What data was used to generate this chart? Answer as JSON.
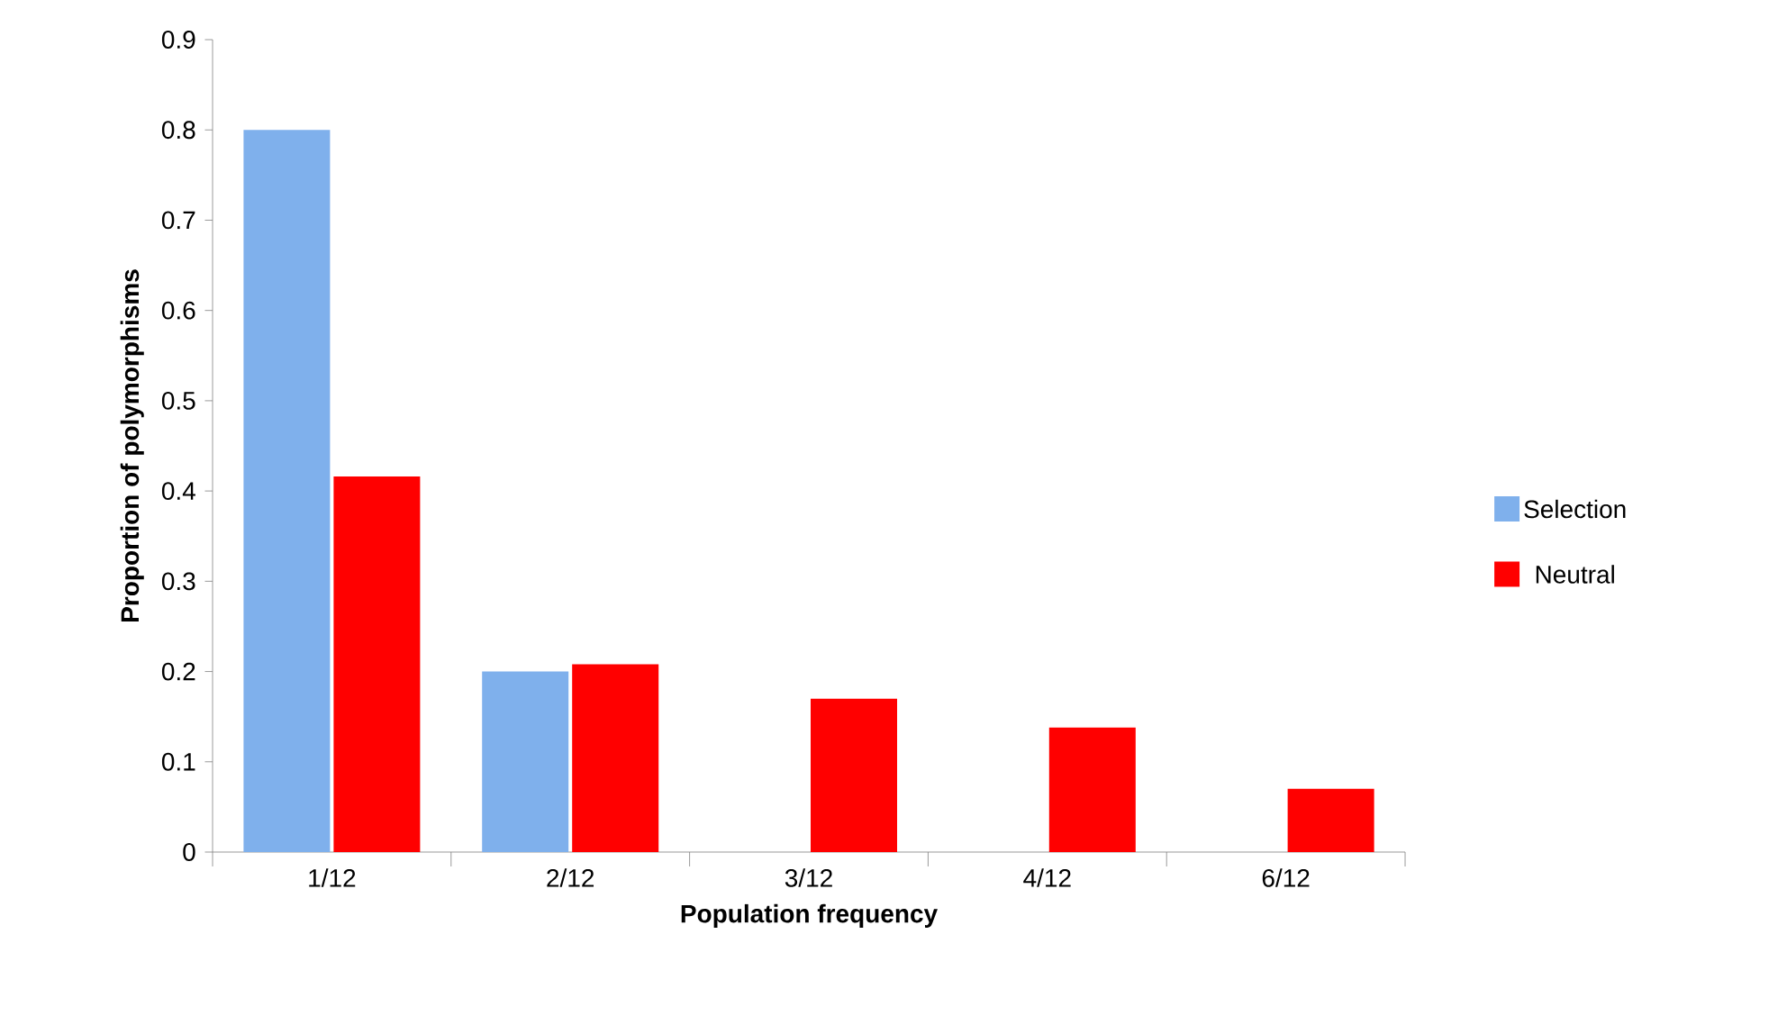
{
  "chart_data": {
    "type": "bar",
    "xlabel": "Population frequency",
    "ylabel": "Proportion of polymorphisms",
    "categories": [
      "1/12",
      "2/12",
      "3/12",
      "4/12",
      "6/12"
    ],
    "series": [
      {
        "name": "Selection",
        "color": "#7fb0ec",
        "values": [
          0.8,
          0.2,
          0,
          0,
          0
        ]
      },
      {
        "name": "Neutral",
        "color": "#ff0000",
        "values": [
          0.416,
          0.208,
          0.17,
          0.138,
          0.07
        ]
      }
    ],
    "ylim": [
      0,
      0.9
    ],
    "yticks": [
      0,
      0.1,
      0.2,
      0.3,
      0.4,
      0.5,
      0.6,
      0.7,
      0.8,
      0.9
    ],
    "grid": false,
    "legend": "right"
  }
}
